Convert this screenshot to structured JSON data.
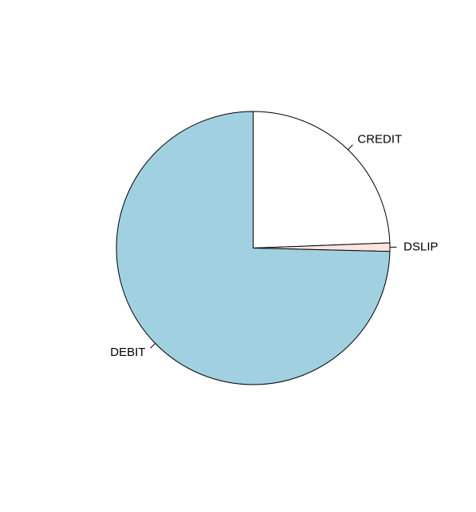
{
  "chart_data": {
    "type": "pie",
    "title": "",
    "categories": [
      "CREDIT",
      "DSLIP",
      "DEBIT"
    ],
    "values": [
      24.4,
      1.0,
      74.6
    ],
    "colors": [
      "#FFFFFF",
      "#FFE4E1",
      "#A1D0E1"
    ],
    "start_angle_deg": 90,
    "direction": "clockwise",
    "legend": "none",
    "border_color": "#000000"
  }
}
